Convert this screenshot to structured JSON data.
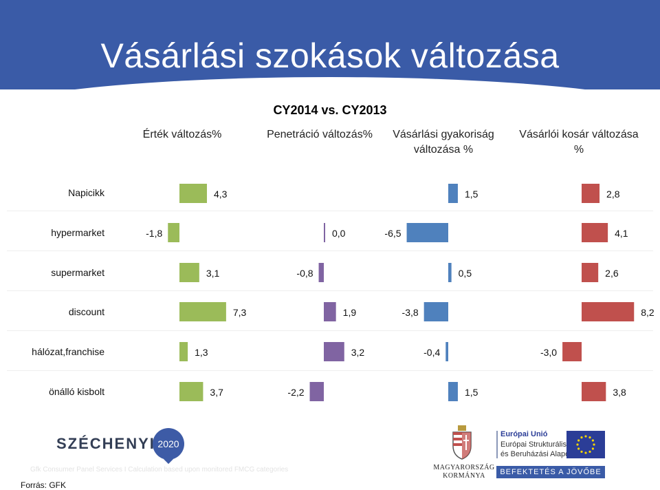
{
  "title": "Vásárlási szokások változása",
  "chart_data": {
    "type": "bar",
    "title": "CY2014 vs. CY2013",
    "categories": [
      "Napicikk",
      "hypermarket",
      "supermarket",
      "discount",
      "hálózat,franchise",
      "önálló kisbolt"
    ],
    "series": [
      {
        "name": "Érték változás%",
        "color": "#9bbb59",
        "values": [
          4.3,
          -1.8,
          3.1,
          7.3,
          1.3,
          3.7
        ],
        "labels": [
          "4,3",
          "-1,8",
          "3,1",
          "7,3",
          "1,3",
          "3,7"
        ]
      },
      {
        "name": "Penetráció változás%",
        "color": "#8064a2",
        "values": [
          null,
          0.0,
          -0.8,
          1.9,
          3.2,
          -2.2
        ],
        "labels": [
          null,
          "0,0",
          "-0,8",
          "1,9",
          "3,2",
          "-2,2"
        ]
      },
      {
        "name": "Vásárlási gyakoriság változása %",
        "color": "#4f81bd",
        "values": [
          1.5,
          -6.5,
          0.5,
          -3.8,
          -0.4,
          1.5
        ],
        "labels": [
          "1,5",
          "-6,5",
          "0,5",
          "-3,8",
          "-0,4",
          "1,5"
        ]
      },
      {
        "name": "Vásárlói kosár változása %",
        "color": "#c0504d",
        "values": [
          2.8,
          4.1,
          2.6,
          8.2,
          -3.0,
          3.8
        ],
        "labels": [
          "2,8",
          "4,1",
          "2,6",
          "8,2",
          "-3,0",
          "3,8"
        ]
      }
    ]
  },
  "headers": {
    "h1": "Érték változás%",
    "h2": "Penetráció változás%",
    "h3a": "Vásárlási gyakoriság",
    "h3b": "változása %",
    "h4a": "Vásárlói kosár változása",
    "h4b": "%"
  },
  "footer": {
    "szechenyi": "SZÉCHENYI",
    "szechenyi_year": "2020",
    "faded_note": "Gfk Consumer Panel Services I Calculation based upon monitored FMCG categories",
    "source": "Forrás: GFK",
    "gov_line1": "MAGYARORSZÁG",
    "gov_line2": "KORMÁNYA",
    "eu_line1": "Európai Unió",
    "eu_line2": "Európai Strukturális",
    "eu_line3": "és Beruházási Alapok",
    "eu_band": "BEFEKTETÉS A JÖVŐBE"
  }
}
